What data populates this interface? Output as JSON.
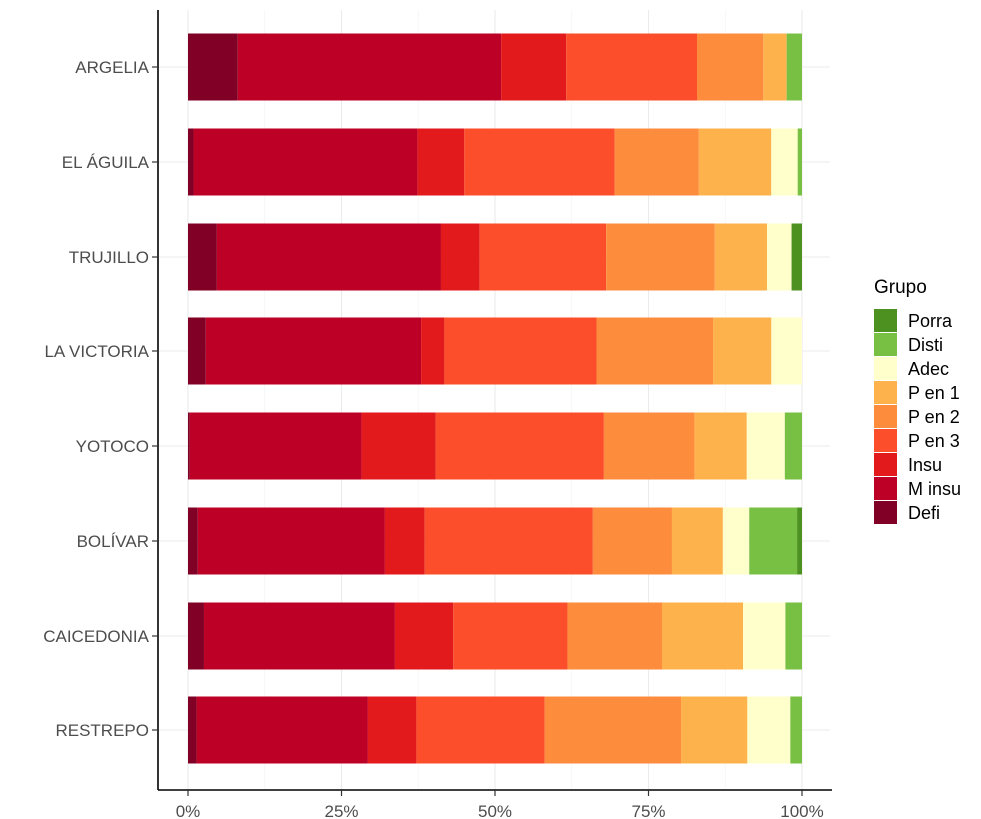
{
  "chart_data": {
    "type": "bar",
    "orientation": "horizontal",
    "stacked": "percent",
    "categories": [
      "ARGELIA",
      "EL ÁGUILA",
      "TRUJILLO",
      "LA VICTORIA",
      "YOTOCO",
      "BOLÍVAR",
      "CAICEDONIA",
      "RESTREPO"
    ],
    "series": [
      {
        "name": "Defi",
        "color": "#800026",
        "values": [
          8.1,
          0.9,
          4.7,
          2.9,
          0.3,
          1.6,
          2.6,
          1.4
        ]
      },
      {
        "name": "M insu",
        "color": "#bd0026",
        "values": [
          42.9,
          36.5,
          36.5,
          35.1,
          28.0,
          30.5,
          31.1,
          27.9
        ]
      },
      {
        "name": "Insu",
        "color": "#e31a1c",
        "values": [
          10.6,
          7.6,
          6.3,
          3.8,
          12.1,
          6.5,
          9.5,
          7.9
        ]
      },
      {
        "name": "P en 3",
        "color": "#fc4e2a",
        "values": [
          21.3,
          24.5,
          20.6,
          24.8,
          27.4,
          27.4,
          18.6,
          20.9
        ]
      },
      {
        "name": "P en 2",
        "color": "#fd8d3c",
        "values": [
          10.8,
          13.7,
          17.7,
          19.0,
          14.8,
          12.9,
          15.4,
          22.2
        ]
      },
      {
        "name": "P en 1",
        "color": "#feb24c",
        "values": [
          3.8,
          11.8,
          8.5,
          9.5,
          8.5,
          8.3,
          13.2,
          10.8
        ]
      },
      {
        "name": "Adec",
        "color": "#ffffcc",
        "values": [
          0.0,
          4.3,
          4.0,
          5.0,
          6.2,
          4.3,
          6.9,
          7.0
        ]
      },
      {
        "name": "Disti",
        "color": "#78c043",
        "values": [
          2.5,
          0.7,
          0.0,
          0.0,
          2.8,
          7.8,
          2.7,
          1.9
        ]
      },
      {
        "name": "Porra",
        "color": "#4d9221",
        "values": [
          0.0,
          0.0,
          1.7,
          0.0,
          0.0,
          0.8,
          0.0,
          0.0
        ]
      }
    ],
    "xlim": [
      0,
      100
    ],
    "x_ticks": [
      "0%",
      "25%",
      "50%",
      "75%",
      "100%"
    ],
    "title": "",
    "xlabel": "",
    "ylabel": "",
    "grid": true,
    "legend": {
      "title": "Grupo",
      "placement": "right",
      "order": [
        "Porra",
        "Disti",
        "Adec",
        "P en 1",
        "P en 2",
        "P en 3",
        "Insu",
        "M insu",
        "Defi"
      ]
    }
  }
}
